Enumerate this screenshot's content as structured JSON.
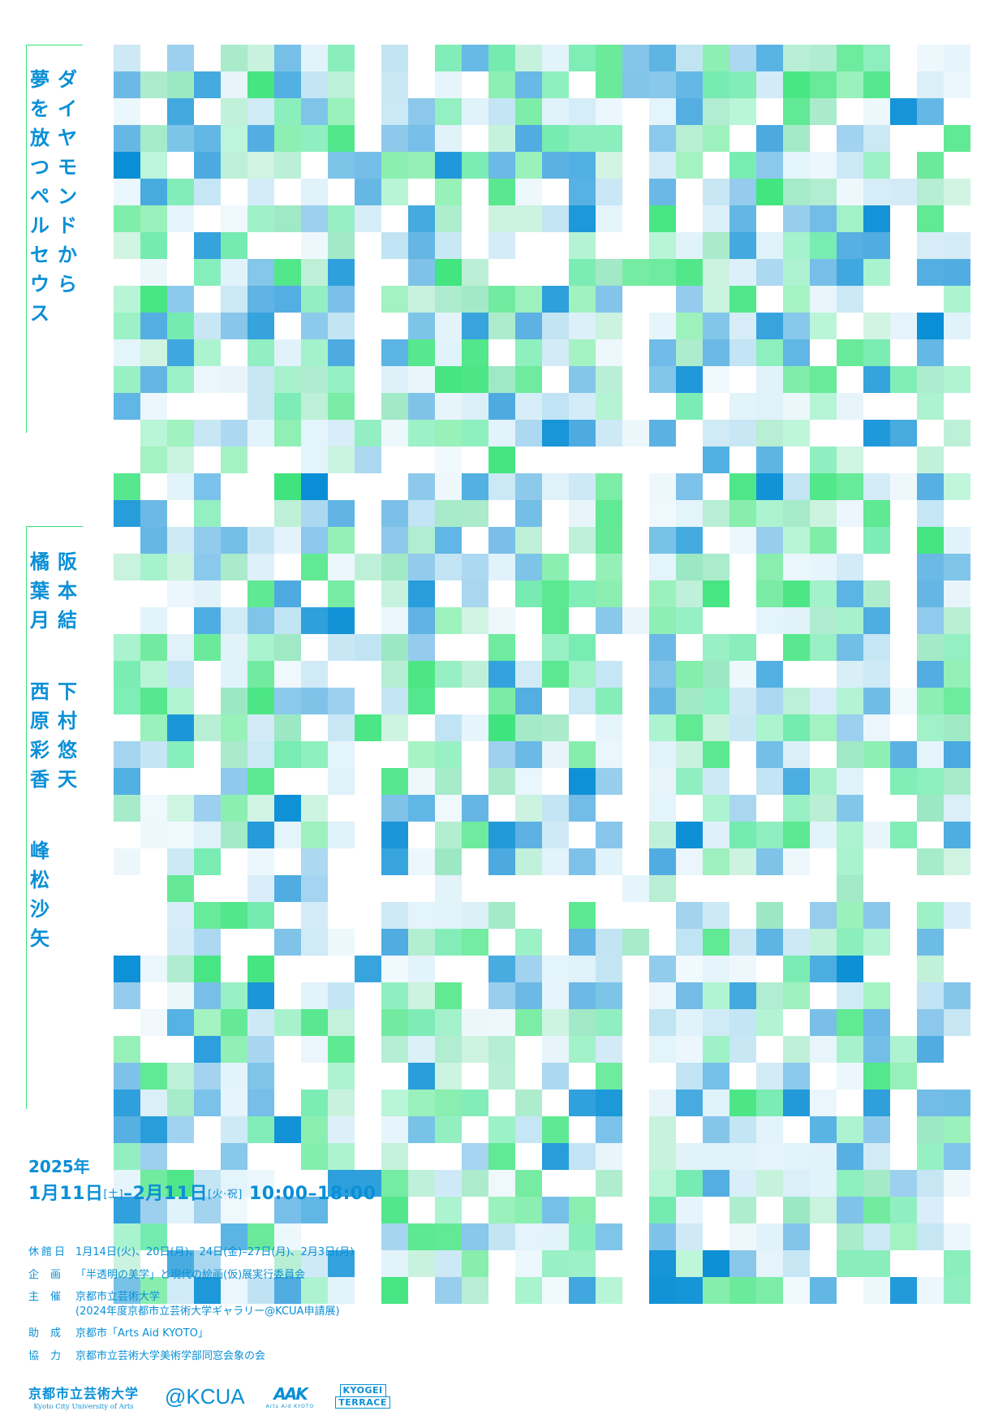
{
  "title": {
    "line1": "ダイヤモンドから",
    "line2": "夢を放つペルセウス"
  },
  "artists": [
    {
      "name": "阪本結"
    },
    {
      "name": "橘葉月"
    },
    {
      "name": "下村悠天"
    },
    {
      "name": "西原彩香"
    },
    {
      "name": "峰松沙矢"
    }
  ],
  "date": {
    "year": "2025年",
    "start_month": "1月",
    "start_day": "11日",
    "start_weekday": "[土]",
    "dash": "–",
    "end_month": "2月",
    "end_day": "11日",
    "end_weekday": "[火·祝]",
    "hours": "10:00–18:00"
  },
  "info": [
    {
      "label": "休館日",
      "value": "1月14日(火)、20日(月)、24日(金)–27日(月)、2月3日(月)"
    },
    {
      "label": "企画",
      "value": "「半透明の美学」と現代の絵画(仮)展実行委員会"
    },
    {
      "label": "主催",
      "value": "京都市立芸術大学",
      "value2": "(2024年度京都市立芸術大学ギャラリー@KCUA申請展)"
    },
    {
      "label": "助成",
      "value": "京都市「Arts Aid KYOTO」"
    },
    {
      "label": "協力",
      "value": "京都市立芸術大学美術学部同窓会象の会"
    }
  ],
  "logos": {
    "university_jp": "京都市立芸術大学",
    "university_en": "Kyoto City University of Arts",
    "gallery": "@KCUA",
    "arts_aid": "AAK",
    "arts_aid_sub": "Arts Aid KYOTO",
    "terrace_line1": "KYOGEI",
    "terrace_line2": "TERRACE"
  },
  "colors": {
    "blue": "#0a8fd6",
    "green": "#3ee47d",
    "light_blue": "#bfe3f3"
  }
}
